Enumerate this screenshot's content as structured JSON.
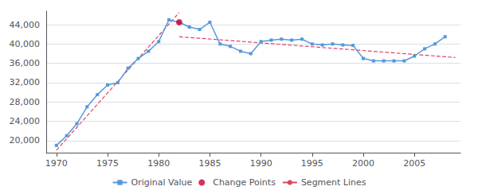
{
  "chart_data": {
    "type": "line",
    "series": [
      {
        "name": "Original Value",
        "type": "line",
        "color": "#5599DD",
        "marker": "square",
        "line_style": "solid",
        "x": [
          1970,
          1971,
          1972,
          1973,
          1974,
          1975,
          1976,
          1977,
          1978,
          1979,
          1980,
          1981,
          1982,
          1983,
          1984,
          1985,
          1986,
          1987,
          1988,
          1989,
          1990,
          1991,
          1992,
          1993,
          1994,
          1995,
          1996,
          1997,
          1998,
          1999,
          2000,
          2001,
          2002,
          2003,
          2004,
          2005,
          2006,
          2007,
          2008
        ],
        "values": [
          19000,
          21000,
          23500,
          27000,
          29500,
          31500,
          32000,
          35000,
          37000,
          38500,
          40500,
          45000,
          44500,
          43500,
          43000,
          44500,
          40000,
          39500,
          38500,
          38000,
          40500,
          40800,
          41000,
          40800,
          41000,
          40000,
          39800,
          40000,
          39800,
          39700,
          37000,
          36500,
          36500,
          36500,
          36500,
          37500,
          39000,
          40000,
          41500
        ]
      },
      {
        "name": "Change Points",
        "type": "scatter",
        "color": "#CC0033",
        "marker": "circle",
        "x": [
          1982
        ],
        "values": [
          44500
        ]
      },
      {
        "name": "Segment Lines",
        "type": "line",
        "color": "#DD4466",
        "line_style": "dashed",
        "x": [
          1970,
          1982
        ],
        "values": [
          18000,
          46500
        ]
      },
      {
        "name": "Segment Lines",
        "type": "line",
        "color": "#DD4466",
        "line_style": "dashed",
        "x": [
          1982,
          2009
        ],
        "values": [
          41500,
          37200
        ]
      }
    ],
    "xlim": [
      1969.0,
      2009.5
    ],
    "xticks": [
      1970,
      1975,
      1980,
      1985,
      1990,
      1995,
      2000,
      2005
    ],
    "ylim": [
      17500,
      46800
    ],
    "yticks": [
      {
        "value": 20000,
        "label": "20,000"
      },
      {
        "value": 24000,
        "label": "24,000"
      },
      {
        "value": 28000,
        "label": "28,000"
      },
      {
        "value": 32000,
        "label": "32,000"
      },
      {
        "value": 36000,
        "label": "36,000"
      },
      {
        "value": 40000,
        "label": "40,000"
      },
      {
        "value": 44000,
        "label": "44,000"
      }
    ],
    "grid": true,
    "legend": "bottom"
  }
}
